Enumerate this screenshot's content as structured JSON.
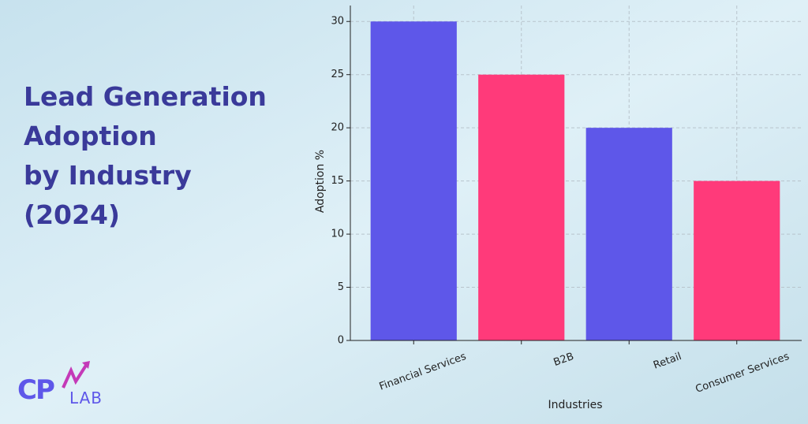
{
  "chart_data": {
    "type": "bar",
    "title": [
      "Lead Generation",
      "Adoption",
      "by Industry",
      "(2024)"
    ],
    "categories": [
      "Financial Services",
      "B2B",
      "Retail",
      "Consumer Services"
    ],
    "values": [
      30,
      25,
      20,
      15
    ],
    "colors": [
      "#5e57e9",
      "#ff3a7a",
      "#5e57e9",
      "#ff3a7a"
    ],
    "ylim": [
      0,
      31.5
    ],
    "yticks": [
      0,
      5,
      10,
      15,
      20,
      25,
      30
    ],
    "ylabel": "Adoption %",
    "xlabel": "Industries",
    "grid": true
  },
  "logo": {
    "mark": "CP",
    "name": "LAB"
  }
}
